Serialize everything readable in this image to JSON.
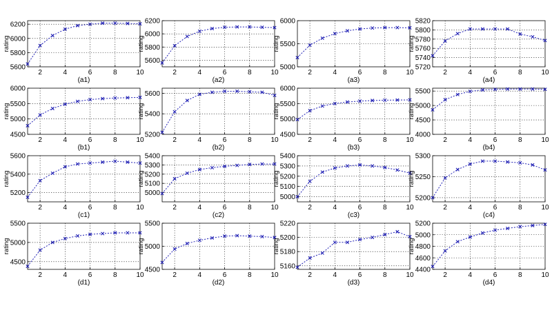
{
  "figure": {
    "background": "#ffffff",
    "series_color": "#1f1fb4"
  },
  "chart_data": [
    {
      "id": "a1",
      "type": "line",
      "caption": "(a1)",
      "ylabel": "rating",
      "x": [
        1,
        2,
        3,
        4,
        5,
        6,
        7,
        8,
        9,
        10
      ],
      "values": [
        5640,
        5900,
        6040,
        6130,
        6180,
        6200,
        6215,
        6215,
        6210,
        6205
      ],
      "xlim": [
        1,
        10
      ],
      "xticks": [
        2,
        4,
        6,
        8,
        10
      ],
      "ylim": [
        5600,
        6250
      ],
      "yticks": [
        5600,
        5800,
        6000,
        6200
      ],
      "grid": true
    },
    {
      "id": "a2",
      "type": "line",
      "caption": "(a2)",
      "ylabel": "rating",
      "x": [
        1,
        2,
        3,
        4,
        5,
        6,
        7,
        8,
        9,
        10
      ],
      "values": [
        5560,
        5820,
        5960,
        6040,
        6080,
        6100,
        6105,
        6105,
        6100,
        6095
      ],
      "xlim": [
        1,
        10
      ],
      "xticks": [
        2,
        4,
        6,
        8,
        10
      ],
      "ylim": [
        5500,
        6200
      ],
      "yticks": [
        5600,
        5800,
        6000,
        6200
      ],
      "grid": true
    },
    {
      "id": "a3",
      "type": "line",
      "caption": "(a3)",
      "ylabel": "rating",
      "x": [
        1,
        2,
        3,
        4,
        5,
        6,
        7,
        8,
        9,
        10
      ],
      "values": [
        5200,
        5470,
        5620,
        5720,
        5780,
        5820,
        5840,
        5850,
        5850,
        5845
      ],
      "xlim": [
        1,
        10
      ],
      "xticks": [
        2,
        4,
        6,
        8,
        10
      ],
      "ylim": [
        5000,
        6000
      ],
      "yticks": [
        5000,
        5500,
        6000
      ],
      "grid": true
    },
    {
      "id": "a4",
      "type": "line",
      "caption": "(a4)",
      "ylabel": "rating",
      "x": [
        1,
        2,
        3,
        4,
        5,
        6,
        7,
        8,
        9,
        10
      ],
      "values": [
        5744,
        5776,
        5792,
        5802,
        5802,
        5802,
        5802,
        5791,
        5785,
        5777
      ],
      "xlim": [
        1,
        10
      ],
      "xticks": [
        2,
        4,
        6,
        8,
        10
      ],
      "ylim": [
        5720,
        5820
      ],
      "yticks": [
        5720,
        5740,
        5760,
        5780,
        5800,
        5820
      ],
      "grid": true
    },
    {
      "id": "b1",
      "type": "line",
      "caption": "(b1)",
      "ylabel": "rating",
      "x": [
        1,
        2,
        3,
        4,
        5,
        6,
        7,
        8,
        9,
        10
      ],
      "values": [
        4780,
        5130,
        5340,
        5480,
        5570,
        5630,
        5660,
        5680,
        5690,
        5700
      ],
      "xlim": [
        1,
        10
      ],
      "xticks": [
        2,
        4,
        6,
        8,
        10
      ],
      "ylim": [
        4500,
        6000
      ],
      "yticks": [
        4500,
        5000,
        5500,
        6000
      ],
      "grid": true
    },
    {
      "id": "b2",
      "type": "line",
      "caption": "(b2)",
      "ylabel": "rating",
      "x": [
        1,
        2,
        3,
        4,
        5,
        6,
        7,
        8,
        9,
        10
      ],
      "values": [
        5220,
        5420,
        5530,
        5590,
        5610,
        5620,
        5620,
        5615,
        5610,
        5580
      ],
      "xlim": [
        1,
        10
      ],
      "xticks": [
        2,
        4,
        6,
        8,
        10
      ],
      "ylim": [
        5200,
        5650
      ],
      "yticks": [
        5200,
        5400,
        5600
      ],
      "grid": true
    },
    {
      "id": "b3",
      "type": "line",
      "caption": "(b3)",
      "ylabel": "rating",
      "x": [
        1,
        2,
        3,
        4,
        5,
        6,
        7,
        8,
        9,
        10
      ],
      "values": [
        4980,
        5270,
        5420,
        5500,
        5550,
        5580,
        5600,
        5610,
        5615,
        5620
      ],
      "xlim": [
        1,
        10
      ],
      "xticks": [
        2,
        4,
        6,
        8,
        10
      ],
      "ylim": [
        4500,
        6000
      ],
      "yticks": [
        4500,
        5000,
        5500,
        6000
      ],
      "grid": true
    },
    {
      "id": "b4",
      "type": "line",
      "caption": "(b4)",
      "ylabel": "rating",
      "x": [
        1,
        2,
        3,
        4,
        5,
        6,
        7,
        8,
        9,
        10
      ],
      "values": [
        4850,
        5200,
        5380,
        5490,
        5540,
        5560,
        5570,
        5570,
        5570,
        5560
      ],
      "xlim": [
        1,
        10
      ],
      "xticks": [
        2,
        4,
        6,
        8,
        10
      ],
      "ylim": [
        4000,
        5600
      ],
      "yticks": [
        4000,
        4500,
        5000,
        5500
      ],
      "grid": true
    },
    {
      "id": "c1",
      "type": "line",
      "caption": "(c1)",
      "ylabel": "rating",
      "x": [
        1,
        2,
        3,
        4,
        5,
        6,
        7,
        8,
        9,
        10
      ],
      "values": [
        5150,
        5330,
        5410,
        5480,
        5510,
        5520,
        5530,
        5540,
        5530,
        5520
      ],
      "xlim": [
        1,
        10
      ],
      "xticks": [
        2,
        4,
        6,
        8,
        10
      ],
      "ylim": [
        5100,
        5600
      ],
      "yticks": [
        5200,
        5400,
        5600
      ],
      "grid": true
    },
    {
      "id": "c2",
      "type": "line",
      "caption": "(c2)",
      "ylabel": "rating",
      "x": [
        1,
        2,
        3,
        4,
        5,
        6,
        7,
        8,
        9,
        10
      ],
      "values": [
        4990,
        5150,
        5210,
        5250,
        5270,
        5285,
        5295,
        5305,
        5310,
        5310
      ],
      "xlim": [
        1,
        10
      ],
      "xticks": [
        2,
        4,
        6,
        8,
        10
      ],
      "ylim": [
        4900,
        5400
      ],
      "yticks": [
        5000,
        5100,
        5200,
        5300,
        5400
      ],
      "grid": true
    },
    {
      "id": "c3",
      "type": "line",
      "caption": "(c3)",
      "ylabel": "rating",
      "x": [
        1,
        2,
        3,
        4,
        5,
        6,
        7,
        8,
        9,
        10
      ],
      "values": [
        5000,
        5150,
        5240,
        5280,
        5300,
        5310,
        5300,
        5285,
        5260,
        5230
      ],
      "xlim": [
        1,
        10
      ],
      "xticks": [
        2,
        4,
        6,
        8,
        10
      ],
      "ylim": [
        4950,
        5400
      ],
      "yticks": [
        5000,
        5100,
        5200,
        5300,
        5400
      ],
      "grid": true
    },
    {
      "id": "c4",
      "type": "line",
      "caption": "(c4)",
      "ylabel": "rating",
      "x": [
        1,
        2,
        3,
        4,
        5,
        6,
        7,
        8,
        9,
        10
      ],
      "values": [
        5200,
        5247,
        5267,
        5280,
        5287,
        5287,
        5285,
        5283,
        5278,
        5266
      ],
      "xlim": [
        1,
        10
      ],
      "xticks": [
        2,
        4,
        6,
        8,
        10
      ],
      "ylim": [
        5190,
        5300
      ],
      "yticks": [
        5200,
        5250,
        5300
      ],
      "grid": true
    },
    {
      "id": "d1",
      "type": "line",
      "caption": "(d1)",
      "ylabel": "rating",
      "x": [
        1,
        2,
        3,
        4,
        5,
        6,
        7,
        8,
        9,
        10
      ],
      "values": [
        4380,
        4800,
        5000,
        5100,
        5170,
        5210,
        5230,
        5250,
        5250,
        5250
      ],
      "xlim": [
        1,
        10
      ],
      "xticks": [
        2,
        4,
        6,
        8,
        10
      ],
      "ylim": [
        4300,
        5500
      ],
      "yticks": [
        4500,
        5000,
        5500
      ],
      "grid": true
    },
    {
      "id": "d2",
      "type": "line",
      "caption": "(d2)",
      "ylabel": "rating",
      "x": [
        1,
        2,
        3,
        4,
        5,
        6,
        7,
        8,
        9,
        10
      ],
      "values": [
        4650,
        4940,
        5060,
        5130,
        5180,
        5220,
        5230,
        5220,
        5210,
        5190
      ],
      "xlim": [
        1,
        10
      ],
      "xticks": [
        2,
        4,
        6,
        8,
        10
      ],
      "ylim": [
        4500,
        5500
      ],
      "yticks": [
        4500,
        5000,
        5500
      ],
      "grid": true
    },
    {
      "id": "d3",
      "type": "line",
      "caption": "(d3)",
      "ylabel": "rating",
      "x": [
        1,
        2,
        3,
        4,
        5,
        6,
        7,
        8,
        9,
        10
      ],
      "values": [
        5158,
        5171,
        5178,
        5193,
        5193,
        5197,
        5200,
        5204,
        5208,
        5201
      ],
      "xlim": [
        1,
        10
      ],
      "xticks": [
        2,
        4,
        6,
        8,
        10
      ],
      "ylim": [
        5155,
        5220
      ],
      "yticks": [
        5160,
        5180,
        5200,
        5220
      ],
      "grid": true
    },
    {
      "id": "d4",
      "type": "line",
      "caption": "(d4)",
      "ylabel": "rating",
      "x": [
        1,
        2,
        3,
        4,
        5,
        6,
        7,
        8,
        9,
        10
      ],
      "values": [
        4450,
        4720,
        4880,
        4960,
        5030,
        5080,
        5110,
        5140,
        5160,
        5180
      ],
      "xlim": [
        1,
        10
      ],
      "xticks": [
        2,
        4,
        6,
        8,
        10
      ],
      "ylim": [
        4400,
        5200
      ],
      "yticks": [
        4400,
        4600,
        4800,
        5000,
        5200
      ],
      "grid": true
    }
  ]
}
